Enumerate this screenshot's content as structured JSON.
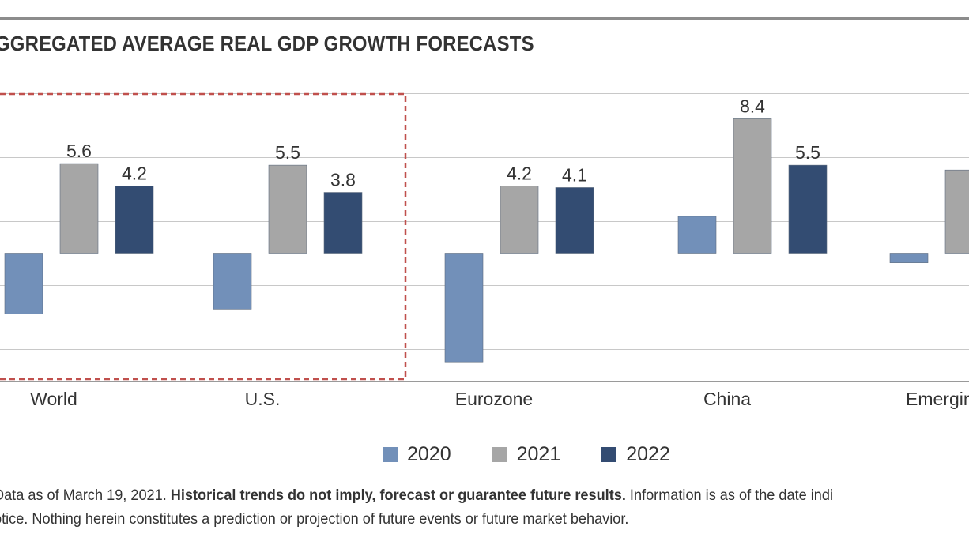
{
  "chart_data": {
    "type": "bar",
    "title": "GGREGATED AVERAGE REAL GDP GROWTH FORECASTS",
    "categories": [
      "World",
      "U.S.",
      "Eurozone",
      "China",
      "Emergin"
    ],
    "series": [
      {
        "name": "2020",
        "color": "#7290b9",
        "values": [
          -3.8,
          -3.5,
          -6.8,
          2.3,
          -0.6
        ]
      },
      {
        "name": "2021",
        "color": "#a6a6a6",
        "values": [
          5.6,
          5.5,
          4.2,
          8.4,
          5.2
        ]
      },
      {
        "name": "2022",
        "color": "#334c72",
        "values": [
          4.2,
          3.8,
          4.1,
          5.5,
          null
        ]
      }
    ],
    "data_labels_series": [
      "2021",
      "2022"
    ],
    "ylim": [
      -8,
      10
    ],
    "grid": true,
    "legend": "bottom-center",
    "annotation": "dashed box around World and U.S."
  },
  "footnote": {
    "part1": "Data as of March 19, 2021. ",
    "bold": "Historical trends do not imply, forecast or guarantee future results.",
    "part2": " Information is as of the date indi",
    "line2": "otice. Nothing herein constitutes a prediction or projection of future events or future market behavior."
  }
}
